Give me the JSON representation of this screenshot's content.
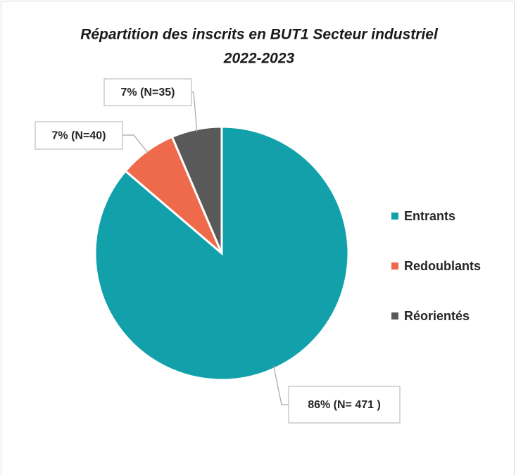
{
  "chart_data": {
    "type": "pie",
    "title": [
      "Répartition des inscrits en BUT1 Secteur industriel",
      "2022-2023"
    ],
    "categories": [
      "Entrants",
      "Redoublants",
      "Réorientés"
    ],
    "values": [
      471,
      40,
      35
    ],
    "value_labels": [
      "86% (N= 471 )",
      "7% (N=40)",
      "7% (N=35)"
    ],
    "colors": [
      "#12a1ab",
      "#ee6a4b",
      "#595959"
    ],
    "legend": "right"
  }
}
